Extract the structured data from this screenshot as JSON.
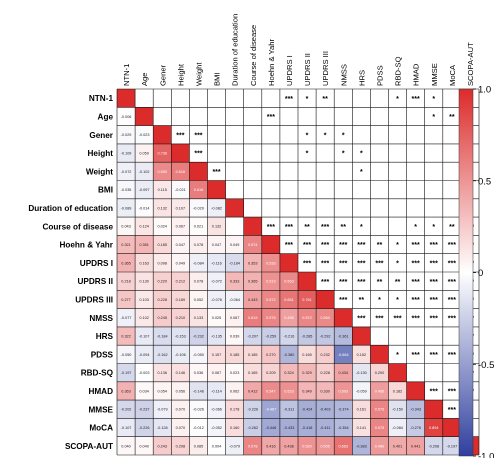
{
  "chart_data": {
    "type": "heatmap",
    "variables": [
      "NTN-1",
      "Age",
      "Gener",
      "Height",
      "Weight",
      "BMI",
      "Duration of education",
      "Course of disease",
      "Hoehn & Yahr",
      "UPDRS I",
      "UPDRS II",
      "UPDRS III",
      "NMSS",
      "HRS",
      "PDSS",
      "RBD-SQ",
      "HMAD",
      "MMSE",
      "MoCA",
      "SCOPA-AUT"
    ],
    "lower_triangle_values": [
      [],
      [
        "-0.006"
      ],
      [
        "-0.029",
        "-0.023"
      ],
      [
        "-0.109",
        "0.059",
        "0.736"
      ],
      [
        "-0.072",
        "-0.102",
        "0.550",
        "0.616"
      ],
      [
        "-0.035",
        "-0.097",
        "0.115",
        "-0.021",
        "0.616"
      ],
      [
        "-0.089",
        "-0.014",
        "0.132",
        "0.107",
        "-0.029",
        "-0.082"
      ],
      [
        "0.043",
        "0.124",
        "0.024",
        "0.067",
        "0.021",
        "0.132"
      ],
      [
        "0.321",
        "0.351",
        "0.185",
        "0.047",
        "0.078",
        "0.047",
        "0.049",
        "0.574"
      ],
      [
        "0.365",
        "0.163",
        "0.098",
        "0.049",
        "-0.084",
        "-0.116",
        "-0.184",
        "0.353",
        "0.533"
      ],
      [
        "0.218",
        "0.130",
        "0.220",
        "0.212",
        "0.078",
        "-0.072",
        "0.333",
        "0.365",
        "0.519",
        "0.563"
      ],
      [
        "0.277",
        "0.103",
        "0.228",
        "0.189",
        "0.052",
        "-0.078",
        "-0.064",
        "0.443",
        "0.572",
        "0.651",
        "0.761"
      ],
      [
        "-0.077",
        "0.102",
        "0.245",
        "0.210",
        "0.133",
        "0.025",
        "0.067",
        "0.619",
        "0.578",
        "0.455",
        "0.572",
        "0.560"
      ],
      [
        "0.322",
        "-0.107",
        "-0.184",
        "-0.153",
        "-0.232",
        "-0.135",
        "0.039",
        "-0.207",
        "-0.259",
        "-0.216",
        "-0.285",
        "-0.292",
        "-0.361"
      ],
      [
        "-0.050",
        "-0.094",
        "-0.162",
        "-0.106",
        "-0.050",
        "0.157",
        "0.185",
        "0.185",
        "0.270",
        "-0.380",
        "0.165",
        "0.232",
        "-0.664",
        "0.152"
      ],
      [
        "-0.197",
        "-0.003",
        "0.136",
        "0.146",
        "0.036",
        "0.067",
        "0.023",
        "0.165",
        "0.209",
        "0.324",
        "0.329",
        "0.228",
        "0.434",
        "-0.130",
        "0.200"
      ],
      [
        "0.363",
        "0.034",
        "0.054",
        "0.056",
        "-0.146",
        "-0.114",
        "0.062",
        "0.412",
        "0.547",
        "0.523",
        "0.349",
        "0.330",
        "0.503",
        "-0.059",
        "0.466",
        "0.182"
      ],
      [
        "-0.202",
        "-0.237",
        "-0.079",
        "0.070",
        "-0.026",
        "-0.066",
        "0.178",
        "-0.226",
        "-0.467",
        "-0.311",
        "-0.424",
        "-0.403",
        "-0.374",
        "0.161",
        "0.576",
        "-0.150",
        "-0.343"
      ],
      [
        "-0.107",
        "-0.226",
        "-0.128",
        "0.070",
        "-0.012",
        "-0.052",
        "0.160",
        "-0.262",
        "-0.446",
        "-0.433",
        "-0.418",
        "-0.411",
        "-0.354",
        "0.141",
        "0.575",
        "-0.084",
        "-0.276",
        "0.894"
      ],
      [
        "0.040",
        "0.040",
        "0.243",
        "0.208",
        "0.085",
        "0.004",
        "-0.079",
        "0.578",
        "0.416",
        "0.438",
        "0.520",
        "0.505",
        "0.663",
        "-0.383",
        "0.480",
        "0.401",
        "0.441",
        "-0.208",
        "-0.197"
      ]
    ],
    "significance_marks": [
      [
        "",
        "",
        "",
        "",
        "",
        "",
        "",
        "",
        "",
        "***",
        "*",
        "**",
        "",
        "",
        "",
        "*",
        "***",
        "*",
        "",
        ""
      ],
      [
        "",
        "",
        "",
        "",
        "",
        "",
        "",
        "",
        "***",
        "",
        "",
        "",
        "",
        "",
        "",
        "",
        "",
        "*",
        "**",
        ""
      ],
      [
        "",
        "",
        "",
        "***",
        "***",
        "",
        "",
        "",
        "",
        "",
        "*",
        "*",
        "*",
        "",
        "",
        "",
        "",
        "",
        "",
        "*"
      ],
      [
        "",
        "",
        "",
        "",
        "***",
        "",
        "",
        "",
        "",
        "",
        "*",
        "",
        "*",
        "*",
        "",
        "",
        "",
        "",
        "",
        "*"
      ],
      [
        "",
        "",
        "",
        "",
        "",
        "***",
        "",
        "",
        "",
        "",
        "",
        "",
        "",
        "*",
        "",
        "",
        "",
        "",
        "",
        ""
      ],
      [
        "",
        "",
        "",
        "",
        "",
        "",
        "",
        "",
        "",
        "",
        "",
        "",
        "",
        "",
        "",
        "",
        "",
        "",
        "",
        ""
      ],
      [
        "",
        "",
        "",
        "",
        "",
        "",
        "",
        "",
        "",
        "",
        "",
        "",
        "",
        "",
        "",
        "",
        "",
        "",
        "",
        ""
      ],
      [
        "",
        "",
        "",
        "",
        "",
        "",
        "",
        "",
        "***",
        "***",
        "**",
        "***",
        "**",
        "*",
        "",
        "",
        "*",
        "*",
        "**",
        "***"
      ],
      [
        "",
        "",
        "",
        "",
        "",
        "",
        "",
        "",
        "",
        "***",
        "***",
        "***",
        "***",
        "***",
        "**",
        "*",
        "***",
        "***",
        "***",
        "***"
      ],
      [
        "",
        "",
        "",
        "",
        "",
        "",
        "",
        "",
        "",
        "",
        "***",
        "***",
        "***",
        "***",
        "***",
        "*",
        "***",
        "***",
        "***",
        "***"
      ],
      [
        "",
        "",
        "",
        "",
        "",
        "",
        "",
        "",
        "",
        "",
        "",
        "***",
        "***",
        "***",
        "**",
        "**",
        "***",
        "***",
        "***",
        "***"
      ],
      [
        "",
        "",
        "",
        "",
        "",
        "",
        "",
        "",
        "",
        "",
        "",
        "",
        "***",
        "**",
        "*",
        "*",
        "***",
        "***",
        "***",
        "***"
      ],
      [
        "",
        "",
        "",
        "",
        "",
        "",
        "",
        "",
        "",
        "",
        "",
        "",
        "",
        "***",
        "***",
        "***",
        "***",
        "***",
        "***",
        "***"
      ],
      [
        "",
        "",
        "",
        "",
        "",
        "",
        "",
        "",
        "",
        "",
        "",
        "",
        "",
        "",
        "",
        "",
        "",
        "",
        "",
        "***"
      ],
      [
        "",
        "",
        "",
        "",
        "",
        "",
        "",
        "",
        "",
        "",
        "",
        "",
        "",
        "",
        "",
        "*",
        "***",
        "***",
        "***",
        "***"
      ],
      [
        "",
        "",
        "",
        "",
        "",
        "",
        "",
        "",
        "",
        "",
        "",
        "",
        "",
        "",
        "",
        "",
        "",
        "",
        "",
        "***"
      ],
      [
        "",
        "",
        "",
        "",
        "",
        "",
        "",
        "",
        "",
        "",
        "",
        "",
        "",
        "",
        "",
        "",
        "",
        "***",
        "***",
        "***"
      ],
      [
        "",
        "",
        "",
        "",
        "",
        "",
        "",
        "",
        "",
        "",
        "",
        "",
        "",
        "",
        "",
        "",
        "",
        "",
        "***",
        "*"
      ],
      [
        "",
        "",
        "",
        "",
        "",
        "",
        "",
        "",
        "",
        "",
        "",
        "",
        "",
        "",
        "",
        "",
        "",
        "",
        "",
        ""
      ],
      [
        "",
        "",
        "",
        "",
        "",
        "",
        "",
        "",
        "",
        "",
        "",
        "",
        "",
        "",
        "",
        "",
        "",
        "",
        "",
        ""
      ]
    ],
    "colorbar": {
      "range": [
        -1,
        1
      ],
      "ticks": [
        "1.0",
        "0.5",
        "0",
        "-0.5",
        "-1.0"
      ],
      "colors": {
        "negative": "#2f3f9e",
        "zero": "#ffffff",
        "positive": "#dc2b2b"
      }
    },
    "grid": true
  }
}
